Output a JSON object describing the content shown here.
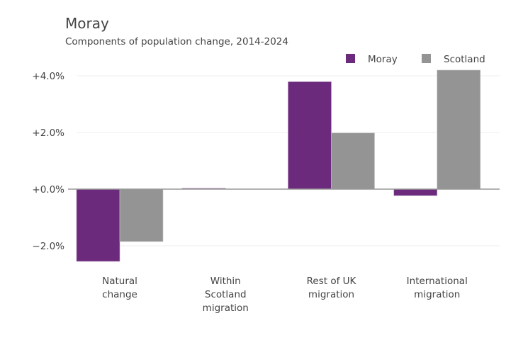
{
  "chart_data": {
    "type": "bar",
    "title": "Moray",
    "subtitle": "Components of population change, 2014-2024",
    "xlabel": "",
    "ylabel": "",
    "categories": [
      [
        "Natural",
        "change"
      ],
      [
        "Within",
        "Scotland",
        "migration"
      ],
      [
        "Rest of UK",
        "migration"
      ],
      [
        "International",
        "migration"
      ]
    ],
    "series": [
      {
        "name": "Moray",
        "color": "#6b2a7b",
        "values": [
          -2.55,
          0.03,
          3.79,
          -0.23
        ]
      },
      {
        "name": "Scotland",
        "color": "#949494",
        "values": [
          -1.85,
          0.0,
          1.98,
          4.2
        ]
      }
    ],
    "ylim": [
      -2.9,
      4.2
    ],
    "yticks": [
      {
        "value": 4,
        "label": "+4.0%"
      },
      {
        "value": 2,
        "label": "+2.0%"
      },
      {
        "value": 0,
        "label": "+0.0%"
      },
      {
        "value": -2,
        "label": "−2.0%"
      }
    ],
    "grid": true,
    "legend_position": "top-right"
  }
}
